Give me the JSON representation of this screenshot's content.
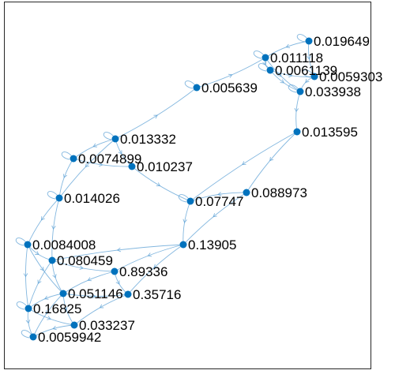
{
  "graph": {
    "node_color": "#0072BD",
    "edge_color": "#5A9FD4",
    "frame_color": "#262626",
    "nodes": [
      {
        "id": "n1",
        "label": "0.019649"
      },
      {
        "id": "n2",
        "label": "0.011118"
      },
      {
        "id": "n3",
        "label": "0.0061139"
      },
      {
        "id": "n4",
        "label": "0.0059303"
      },
      {
        "id": "n5",
        "label": "0.033938"
      },
      {
        "id": "n6",
        "label": "0.005639"
      },
      {
        "id": "n7",
        "label": "0.013595"
      },
      {
        "id": "n8",
        "label": "0.013332"
      },
      {
        "id": "n9",
        "label": "0.0074899"
      },
      {
        "id": "n10",
        "label": "0.010237"
      },
      {
        "id": "n11",
        "label": "0.088973"
      },
      {
        "id": "n12",
        "label": "0.07747"
      },
      {
        "id": "n13",
        "label": "0.014026"
      },
      {
        "id": "n14",
        "label": "0.13905"
      },
      {
        "id": "n15",
        "label": "0.0084008"
      },
      {
        "id": "n16",
        "label": "0.080459"
      },
      {
        "id": "n17",
        "label": "0.89336"
      },
      {
        "id": "n18",
        "label": "0.051146"
      },
      {
        "id": "n19",
        "label": "0.35716"
      },
      {
        "id": "n20",
        "label": "0.16825"
      },
      {
        "id": "n21",
        "label": "0.033237"
      },
      {
        "id": "n22",
        "label": "0.0059942"
      }
    ],
    "edges": [
      [
        "n1",
        "n2"
      ],
      [
        "n2",
        "n3"
      ],
      [
        "n2",
        "n5"
      ],
      [
        "n3",
        "n4"
      ],
      [
        "n3",
        "n5"
      ],
      [
        "n4",
        "n5"
      ],
      [
        "n1",
        "n4"
      ],
      [
        "n6",
        "n2"
      ],
      [
        "n8",
        "n6"
      ],
      [
        "n5",
        "n7"
      ],
      [
        "n7",
        "n11"
      ],
      [
        "n7",
        "n12"
      ],
      [
        "n11",
        "n12"
      ],
      [
        "n8",
        "n9"
      ],
      [
        "n8",
        "n10"
      ],
      [
        "n9",
        "n10"
      ],
      [
        "n9",
        "n13"
      ],
      [
        "n10",
        "n12"
      ],
      [
        "n12",
        "n14"
      ],
      [
        "n11",
        "n14"
      ],
      [
        "n13",
        "n15"
      ],
      [
        "n13",
        "n16"
      ],
      [
        "n15",
        "n16"
      ],
      [
        "n15",
        "n18"
      ],
      [
        "n15",
        "n20"
      ],
      [
        "n16",
        "n17"
      ],
      [
        "n16",
        "n18"
      ],
      [
        "n14",
        "n17"
      ],
      [
        "n14",
        "n19"
      ],
      [
        "n14",
        "n16"
      ],
      [
        "n17",
        "n19"
      ],
      [
        "n17",
        "n18"
      ],
      [
        "n18",
        "n19"
      ],
      [
        "n18",
        "n20"
      ],
      [
        "n18",
        "n21"
      ],
      [
        "n19",
        "n21"
      ],
      [
        "n20",
        "n21"
      ],
      [
        "n20",
        "n22"
      ],
      [
        "n21",
        "n22"
      ],
      [
        "n16",
        "n20"
      ],
      [
        "n18",
        "n22"
      ],
      [
        "n8",
        "n13"
      ]
    ],
    "self_loops": [
      "n2",
      "n3",
      "n4",
      "n5",
      "n6",
      "n8",
      "n9",
      "n12",
      "n13",
      "n15",
      "n20",
      "n22",
      "n1"
    ]
  }
}
